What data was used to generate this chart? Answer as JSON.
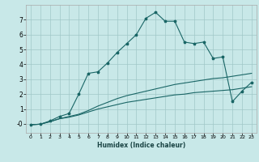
{
  "xlabel": "Humidex (Indice chaleur)",
  "bg_color": "#c8e8e8",
  "grid_color": "#a0c8c8",
  "line_color": "#1a6666",
  "xlim": [
    -0.5,
    23.5
  ],
  "ylim": [
    -0.6,
    8.0
  ],
  "xticks": [
    0,
    1,
    2,
    3,
    4,
    5,
    6,
    7,
    8,
    9,
    10,
    11,
    12,
    13,
    14,
    15,
    16,
    17,
    18,
    19,
    20,
    21,
    22,
    23
  ],
  "yticks": [
    0,
    1,
    2,
    3,
    4,
    5,
    6,
    7
  ],
  "line1_x": [
    0,
    1,
    2,
    3,
    4,
    5,
    6,
    7,
    8,
    9,
    10,
    11,
    12,
    13,
    14,
    15,
    16,
    17,
    18,
    19,
    20,
    21,
    22,
    23
  ],
  "line1_y": [
    -0.05,
    -0.02,
    0.15,
    0.35,
    0.45,
    0.6,
    0.8,
    1.0,
    1.15,
    1.3,
    1.45,
    1.55,
    1.65,
    1.75,
    1.85,
    1.95,
    2.0,
    2.1,
    2.15,
    2.2,
    2.25,
    2.3,
    2.4,
    2.5
  ],
  "line2_x": [
    0,
    1,
    2,
    3,
    4,
    5,
    6,
    7,
    8,
    9,
    10,
    11,
    12,
    13,
    14,
    15,
    16,
    17,
    18,
    19,
    20,
    21,
    22,
    23
  ],
  "line2_y": [
    -0.05,
    -0.02,
    0.15,
    0.35,
    0.5,
    0.65,
    0.9,
    1.2,
    1.45,
    1.7,
    1.9,
    2.05,
    2.2,
    2.35,
    2.5,
    2.65,
    2.75,
    2.85,
    2.95,
    3.05,
    3.1,
    3.2,
    3.3,
    3.4
  ],
  "line3_x": [
    0,
    1,
    2,
    3,
    4,
    5,
    6,
    7,
    8,
    9,
    10,
    11,
    12,
    13,
    14,
    15,
    16,
    17,
    18,
    19,
    20,
    21,
    22,
    23
  ],
  "line3_y": [
    -0.05,
    -0.02,
    0.2,
    0.5,
    0.7,
    2.0,
    3.4,
    3.5,
    4.1,
    4.8,
    5.4,
    6.0,
    7.1,
    7.5,
    6.9,
    6.9,
    5.5,
    5.4,
    5.5,
    4.4,
    4.5,
    1.5,
    2.2,
    2.8
  ],
  "xlabel_fontsize": 5.5,
  "tick_fontsize_x": 4.5,
  "tick_fontsize_y": 5.5,
  "linewidth": 0.8,
  "marker_size": 2.5
}
